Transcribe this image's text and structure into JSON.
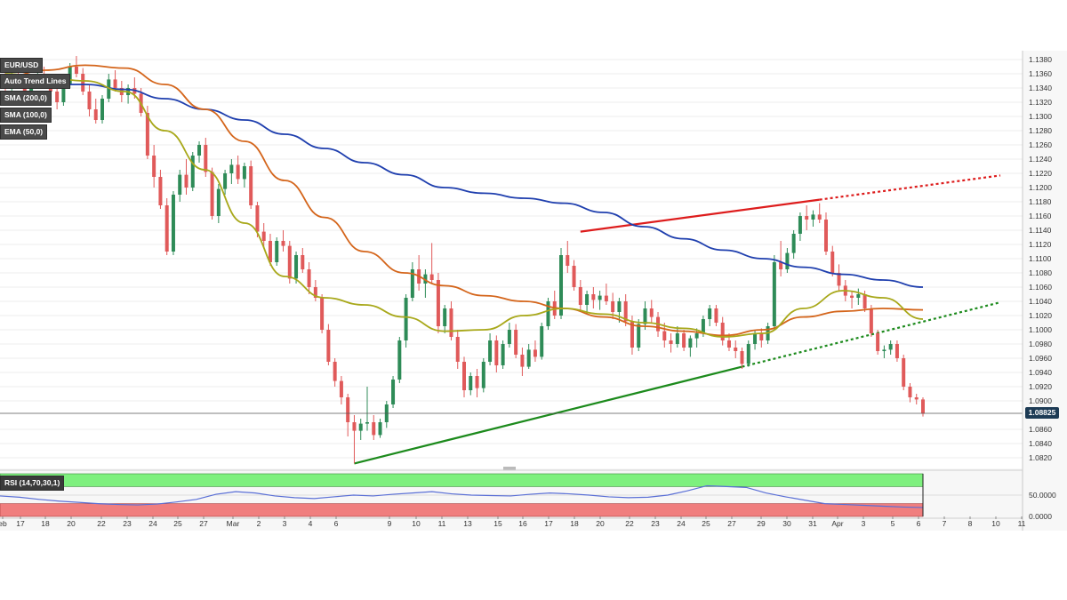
{
  "header": {
    "symbol": "EUR/USD",
    "badges": [
      {
        "label": "Auto Trend Lines"
      },
      {
        "label": "SMA (200,0)"
      },
      {
        "label": "SMA (100,0)"
      },
      {
        "label": "EMA (50,0)"
      }
    ]
  },
  "colors": {
    "bull": "#2e8b57",
    "bear": "#e05a5a",
    "sma200": "#1f3fae",
    "sma100": "#d4651b",
    "ema50": "#a8a81a",
    "resistance": "#dd1c1c",
    "support": "#1c8a1c",
    "rsi_line": "#5a6fd6",
    "rsi_overbought": "#7ef07e",
    "rsi_oversold": "#f07e7e"
  },
  "chart_data": {
    "type": "candlestick",
    "symbol": "EUR/USD",
    "y_ticks": [
      "1.1380",
      "1.1360",
      "1.1340",
      "1.1320",
      "1.1300",
      "1.1280",
      "1.1260",
      "1.1240",
      "1.1220",
      "1.1200",
      "1.1180",
      "1.1160",
      "1.1140",
      "1.1120",
      "1.1100",
      "1.1080",
      "1.1060",
      "1.1040",
      "1.1020",
      "1.1000",
      "1.0980",
      "1.0960",
      "1.0940",
      "1.0920",
      "1.0900",
      "1.0860",
      "1.0840",
      "1.0820"
    ],
    "ylim": [
      1.081,
      1.1385
    ],
    "current_price": 1.08825,
    "current_price_label": "1.08825",
    "x_labels": [
      "eb",
      "17",
      "18",
      "20",
      "22",
      "23",
      "24",
      "25",
      "27",
      "Mar",
      "2",
      "3",
      "4",
      "6",
      "9",
      "10",
      "11",
      "13",
      "15",
      "16",
      "17",
      "18",
      "20",
      "22",
      "23",
      "24",
      "25",
      "27",
      "29",
      "30",
      "31",
      "Apr",
      "3",
      "5",
      "6",
      "7",
      "8",
      "10",
      "11"
    ],
    "ohlc": [
      [
        1.1355,
        1.137,
        1.1335,
        1.1345
      ],
      [
        1.1345,
        1.1365,
        1.133,
        1.136
      ],
      [
        1.136,
        1.1372,
        1.134,
        1.1342
      ],
      [
        1.1342,
        1.1355,
        1.132,
        1.133
      ],
      [
        1.133,
        1.1352,
        1.1322,
        1.1348
      ],
      [
        1.1348,
        1.1365,
        1.134,
        1.1358
      ],
      [
        1.1358,
        1.137,
        1.1345,
        1.135
      ],
      [
        1.135,
        1.136,
        1.133,
        1.1335
      ],
      [
        1.1335,
        1.1345,
        1.131,
        1.132
      ],
      [
        1.132,
        1.135,
        1.1315,
        1.1345
      ],
      [
        1.1345,
        1.1375,
        1.134,
        1.137
      ],
      [
        1.137,
        1.1385,
        1.1355,
        1.136
      ],
      [
        1.136,
        1.1368,
        1.133,
        1.1335
      ],
      [
        1.1335,
        1.1345,
        1.13,
        1.131
      ],
      [
        1.131,
        1.1325,
        1.129,
        1.1295
      ],
      [
        1.1295,
        1.133,
        1.129,
        1.1325
      ],
      [
        1.1325,
        1.136,
        1.132,
        1.1352
      ],
      [
        1.1352,
        1.1365,
        1.1335,
        1.134
      ],
      [
        1.134,
        1.135,
        1.132,
        1.133
      ],
      [
        1.133,
        1.1345,
        1.1318,
        1.134
      ],
      [
        1.134,
        1.1355,
        1.1325,
        1.1332
      ],
      [
        1.1332,
        1.134,
        1.13,
        1.1305
      ],
      [
        1.1305,
        1.1315,
        1.124,
        1.1245
      ],
      [
        1.1245,
        1.126,
        1.12,
        1.1215
      ],
      [
        1.1215,
        1.1225,
        1.117,
        1.1175
      ],
      [
        1.1175,
        1.1185,
        1.1105,
        1.111
      ],
      [
        1.111,
        1.1195,
        1.1105,
        1.119
      ],
      [
        1.119,
        1.1225,
        1.118,
        1.1218
      ],
      [
        1.1218,
        1.124,
        1.119,
        1.12
      ],
      [
        1.12,
        1.125,
        1.1195,
        1.1245
      ],
      [
        1.1245,
        1.1265,
        1.1235,
        1.126
      ],
      [
        1.126,
        1.127,
        1.1215,
        1.1222
      ],
      [
        1.1222,
        1.1228,
        1.1155,
        1.116
      ],
      [
        1.116,
        1.1205,
        1.115,
        1.1198
      ],
      [
        1.1198,
        1.1225,
        1.119,
        1.122
      ],
      [
        1.122,
        1.124,
        1.1205,
        1.1232
      ],
      [
        1.1232,
        1.1245,
        1.1205,
        1.1212
      ],
      [
        1.1212,
        1.1235,
        1.12,
        1.123
      ],
      [
        1.123,
        1.1238,
        1.117,
        1.1175
      ],
      [
        1.1175,
        1.118,
        1.113,
        1.1138
      ],
      [
        1.1138,
        1.115,
        1.1115,
        1.1125
      ],
      [
        1.1125,
        1.1135,
        1.109,
        1.1095
      ],
      [
        1.1095,
        1.113,
        1.109,
        1.1125
      ],
      [
        1.1125,
        1.114,
        1.111,
        1.1118
      ],
      [
        1.1118,
        1.1125,
        1.1065,
        1.1072
      ],
      [
        1.1072,
        1.111,
        1.1065,
        1.1105
      ],
      [
        1.1105,
        1.1115,
        1.108,
        1.1085
      ],
      [
        1.1085,
        1.1095,
        1.105,
        1.106
      ],
      [
        1.106,
        1.107,
        1.104,
        1.1045
      ],
      [
        1.1045,
        1.105,
        1.0995,
        1.1
      ],
      [
        1.1,
        1.1008,
        1.095,
        1.0955
      ],
      [
        1.0955,
        1.096,
        1.092,
        1.0928
      ],
      [
        1.0928,
        1.0935,
        1.0895,
        1.0905
      ],
      [
        1.0905,
        1.091,
        1.085,
        1.087
      ],
      [
        1.087,
        1.088,
        1.0812,
        1.0858
      ],
      [
        1.0858,
        1.0875,
        1.0845,
        1.0868
      ],
      [
        1.0868,
        1.092,
        1.0858,
        1.087
      ],
      [
        1.087,
        1.088,
        1.0845,
        1.0852
      ],
      [
        1.0852,
        1.0875,
        1.0848,
        1.087
      ],
      [
        1.087,
        1.09,
        1.0862,
        1.0895
      ],
      [
        1.0895,
        1.0935,
        1.089,
        1.093
      ],
      [
        1.093,
        1.099,
        1.0925,
        1.0985
      ],
      [
        1.0985,
        1.105,
        1.0975,
        1.1045
      ],
      [
        1.1045,
        1.1095,
        1.104,
        1.1085
      ],
      [
        1.1085,
        1.1105,
        1.1055,
        1.1065
      ],
      [
        1.1065,
        1.1085,
        1.1045,
        1.1078
      ],
      [
        1.1078,
        1.1122,
        1.1065,
        1.107
      ],
      [
        1.107,
        1.108,
        1.0995,
        1.1005
      ],
      [
        1.1005,
        1.1035,
        1.0995,
        1.103
      ],
      [
        1.103,
        1.104,
        1.0985,
        1.099
      ],
      [
        1.099,
        1.1,
        1.0945,
        1.0955
      ],
      [
        1.0955,
        1.0962,
        1.0905,
        1.0915
      ],
      [
        1.0915,
        1.094,
        1.0908,
        1.0935
      ],
      [
        1.0935,
        1.0945,
        1.0905,
        1.0918
      ],
      [
        1.0918,
        1.096,
        1.0912,
        1.0955
      ],
      [
        1.0955,
        1.0995,
        1.095,
        1.0985
      ],
      [
        1.0985,
        1.0992,
        1.094,
        1.095
      ],
      [
        1.095,
        1.0985,
        1.0945,
        1.098
      ],
      [
        1.098,
        1.101,
        1.0975,
        1.1
      ],
      [
        1.1,
        1.1008,
        1.096,
        1.0965
      ],
      [
        1.0965,
        1.0975,
        1.0935,
        1.0948
      ],
      [
        1.0948,
        1.098,
        1.0945,
        1.0972
      ],
      [
        1.0972,
        1.0985,
        1.0955,
        1.0962
      ],
      [
        1.0962,
        1.101,
        1.0958,
        1.1005
      ],
      [
        1.1005,
        1.1045,
        1.1,
        1.104
      ],
      [
        1.104,
        1.1055,
        1.1015,
        1.102
      ],
      [
        1.102,
        1.1115,
        1.1015,
        1.1105
      ],
      [
        1.1105,
        1.1125,
        1.108,
        1.109
      ],
      [
        1.109,
        1.1098,
        1.1055,
        1.106
      ],
      [
        1.106,
        1.107,
        1.1025,
        1.1035
      ],
      [
        1.1035,
        1.1055,
        1.1022,
        1.105
      ],
      [
        1.105,
        1.106,
        1.103,
        1.1042
      ],
      [
        1.1042,
        1.1055,
        1.1028,
        1.1048
      ],
      [
        1.1048,
        1.1065,
        1.1035,
        1.104
      ],
      [
        1.104,
        1.1052,
        1.1015,
        1.1025
      ],
      [
        1.1025,
        1.1045,
        1.101,
        1.104
      ],
      [
        1.104,
        1.105,
        1.1005,
        1.1012
      ],
      [
        1.1012,
        1.102,
        1.0965,
        1.0975
      ],
      [
        1.0975,
        1.1015,
        1.097,
        1.1008
      ],
      [
        1.1008,
        1.104,
        1.1,
        1.103
      ],
      [
        1.103,
        1.1042,
        1.101,
        1.1018
      ],
      [
        1.1018,
        1.1025,
        1.099,
        1.0998
      ],
      [
        1.0998,
        1.101,
        1.0975,
        1.0985
      ],
      [
        1.0985,
        1.0995,
        1.0968,
        1.098
      ],
      [
        1.098,
        1.1005,
        1.0975,
        1.0995
      ],
      [
        1.0995,
        1.1,
        1.097,
        1.0975
      ],
      [
        1.0975,
        1.0992,
        1.0962,
        1.0988
      ],
      [
        1.0988,
        1.1002,
        1.0975,
        1.0995
      ],
      [
        1.0995,
        1.102,
        1.099,
        1.1015
      ],
      [
        1.1015,
        1.1035,
        1.1005,
        1.103
      ],
      [
        1.103,
        1.1035,
        1.1005,
        1.101
      ],
      [
        1.101,
        1.1018,
        1.0978,
        1.0985
      ],
      [
        1.0985,
        1.0995,
        1.097,
        1.0975
      ],
      [
        1.0975,
        1.0985,
        1.096,
        1.097
      ],
      [
        1.097,
        1.0975,
        1.0945,
        1.0952
      ],
      [
        1.0952,
        1.0985,
        1.0948,
        1.098
      ],
      [
        1.098,
        1.1,
        1.0972,
        1.0995
      ],
      [
        1.0995,
        1.1002,
        1.0975,
        1.0985
      ],
      [
        1.0985,
        1.101,
        1.098,
        1.1005
      ],
      [
        1.1005,
        1.1105,
        1.1,
        1.1095
      ],
      [
        1.1095,
        1.1125,
        1.1075,
        1.1085
      ],
      [
        1.1085,
        1.1115,
        1.108,
        1.1108
      ],
      [
        1.1108,
        1.114,
        1.11,
        1.1135
      ],
      [
        1.1135,
        1.1165,
        1.1125,
        1.116
      ],
      [
        1.116,
        1.1175,
        1.114,
        1.1155
      ],
      [
        1.1155,
        1.1168,
        1.1145,
        1.1162
      ],
      [
        1.1162,
        1.1178,
        1.115,
        1.1155
      ],
      [
        1.1155,
        1.1165,
        1.1105,
        1.111
      ],
      [
        1.111,
        1.1118,
        1.1075,
        1.108
      ],
      [
        1.108,
        1.1092,
        1.1055,
        1.1062
      ],
      [
        1.1062,
        1.107,
        1.104,
        1.1048
      ],
      [
        1.1048,
        1.1055,
        1.103,
        1.1045
      ],
      [
        1.1045,
        1.1058,
        1.1035,
        1.105
      ],
      [
        1.105,
        1.1055,
        1.1025,
        1.103
      ],
      [
        1.103,
        1.1035,
        1.099,
        1.0995
      ],
      [
        1.0995,
        1.1,
        1.0965,
        1.097
      ],
      [
        1.097,
        1.0978,
        1.096,
        1.0972
      ],
      [
        1.0972,
        1.0985,
        1.0965,
        1.098
      ],
      [
        1.098,
        1.0985,
        1.0955,
        1.096
      ],
      [
        1.096,
        1.0965,
        1.0915,
        1.092
      ],
      [
        1.092,
        1.0925,
        1.0898,
        1.0905
      ],
      [
        1.0905,
        1.091,
        1.0895,
        1.0902
      ],
      [
        1.0902,
        1.0905,
        1.0878,
        1.0882
      ]
    ],
    "series": [
      {
        "name": "SMA (200,0)",
        "values": [
          1.1345,
          1.1345,
          1.1345,
          1.1338,
          1.1325,
          1.131,
          1.1295,
          1.1275,
          1.1255,
          1.1235,
          1.1218,
          1.12,
          1.1192,
          1.1185,
          1.1178,
          1.1165,
          1.1145,
          1.1128,
          1.1112,
          1.11,
          1.1088,
          1.1078,
          1.107,
          1.106
        ]
      },
      {
        "name": "SMA (100,0)",
        "values": [
          1.1355,
          1.1365,
          1.1372,
          1.1368,
          1.1345,
          1.131,
          1.1265,
          1.121,
          1.1158,
          1.111,
          1.108,
          1.1062,
          1.1048,
          1.104,
          1.103,
          1.1018,
          1.1005,
          1.0998,
          1.0992,
          1.1,
          1.1018,
          1.1026,
          1.103,
          1.1028
        ]
      },
      {
        "name": "EMA (50,0)",
        "values": [
          1.136,
          1.1355,
          1.135,
          1.1335,
          1.128,
          1.1225,
          1.115,
          1.1075,
          1.1045,
          1.1035,
          1.1018,
          1.0998,
          1.1,
          1.102,
          1.103,
          1.1022,
          1.101,
          1.1002,
          1.099,
          1.0995,
          1.103,
          1.1055,
          1.1045,
          1.1015
        ]
      }
    ],
    "rsi": {
      "label": "RSI (14,70,30,1)",
      "ylim": [
        0,
        100
      ],
      "overbought": 70,
      "oversold": 30,
      "y_ticks": [
        "50.0000",
        "0.0000"
      ],
      "values": [
        48,
        45,
        40,
        36,
        33,
        30,
        28,
        27,
        29,
        34,
        40,
        52,
        58,
        55,
        48,
        44,
        42,
        46,
        50,
        48,
        52,
        55,
        58,
        53,
        50,
        49,
        48,
        52,
        55,
        53,
        50,
        46,
        44,
        45,
        50,
        60,
        72,
        70,
        68,
        55,
        46,
        38,
        30,
        28,
        26,
        24,
        22,
        21
      ]
    }
  }
}
